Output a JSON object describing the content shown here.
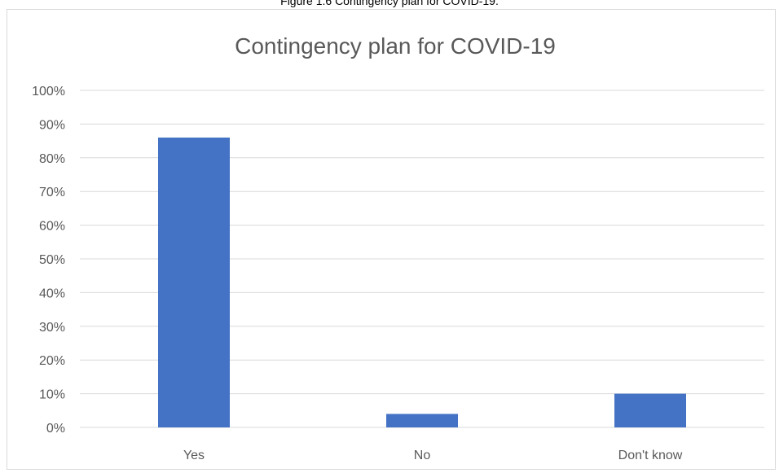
{
  "caption": "Figure 1.6 Contingency plan for COVID-19.",
  "chart_data": {
    "type": "bar",
    "title": "Contingency plan for COVID-19",
    "categories": [
      "Yes",
      "No",
      "Don't know"
    ],
    "values": [
      0.86,
      0.04,
      0.1
    ],
    "ylim": [
      0,
      1
    ],
    "ytick_values": [
      0,
      0.1,
      0.2,
      0.3,
      0.4,
      0.5,
      0.6,
      0.7,
      0.8,
      0.9,
      1.0
    ],
    "ytick_labels": [
      "0%",
      "10%",
      "20%",
      "30%",
      "40%",
      "50%",
      "60%",
      "70%",
      "80%",
      "90%",
      "100%"
    ],
    "grid": true,
    "legend": "none",
    "bar_color": "#4472c4",
    "grid_color": "#d9d9d9"
  }
}
